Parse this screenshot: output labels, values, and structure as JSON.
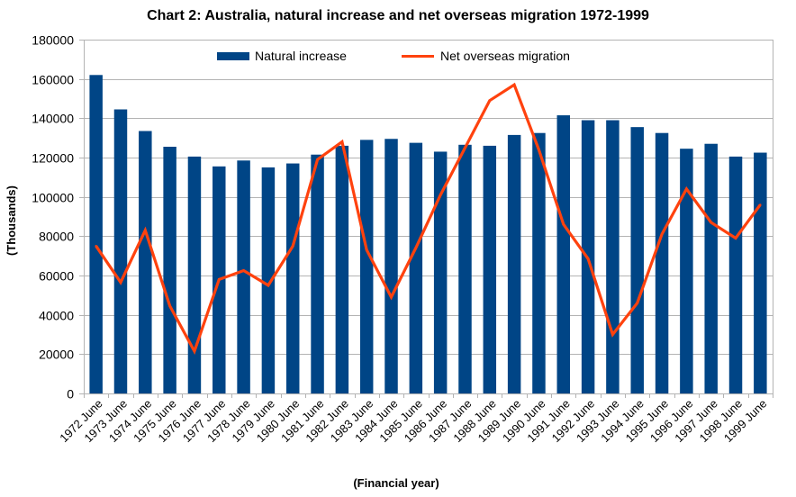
{
  "chart_data": {
    "type": "bar",
    "title": "Chart 2: Australia, natural increase and net overseas migration 1972-1999",
    "xlabel": "(Financial year)",
    "ylabel": "(Thousands)",
    "ylim": [
      0,
      180000
    ],
    "yticks": [
      0,
      20000,
      40000,
      60000,
      80000,
      100000,
      120000,
      140000,
      160000,
      180000
    ],
    "grid": true,
    "legend_position": "top",
    "categories": [
      "1972 June",
      "1973 June",
      "1974 June",
      "1975 June",
      "1976 June",
      "1977 June",
      "1978 June",
      "1979 June",
      "1980 June",
      "1981 June",
      "1982 June",
      "1983 June",
      "1984 June",
      "1985 June",
      "1986 June",
      "1987 June",
      "1988 June",
      "1989 June",
      "1990 June",
      "1991 June",
      "1992 June",
      "1993 June",
      "1994 June",
      "1995 June",
      "1996 June",
      "1997 June",
      "1998 June",
      "1999 June"
    ],
    "series": [
      {
        "name": "Natural increase",
        "type": "bar",
        "color": "#004586",
        "values": [
          162000,
          144500,
          133500,
          125500,
          120500,
          115500,
          118500,
          115000,
          117000,
          121500,
          126000,
          129000,
          129500,
          127500,
          123000,
          126500,
          126000,
          131500,
          132500,
          141500,
          139000,
          139000,
          135500,
          132500,
          124500,
          127000,
          120500,
          122500
        ]
      },
      {
        "name": "Net overseas migration",
        "type": "line",
        "color": "#ff420e",
        "values": [
          75000,
          56500,
          83000,
          44500,
          21500,
          58000,
          62500,
          55000,
          75000,
          119000,
          128000,
          73000,
          49000,
          74000,
          101000,
          125000,
          149000,
          157000,
          124000,
          86000,
          68500,
          30000,
          46000,
          81000,
          104000,
          87000,
          79000,
          96000
        ]
      }
    ]
  }
}
